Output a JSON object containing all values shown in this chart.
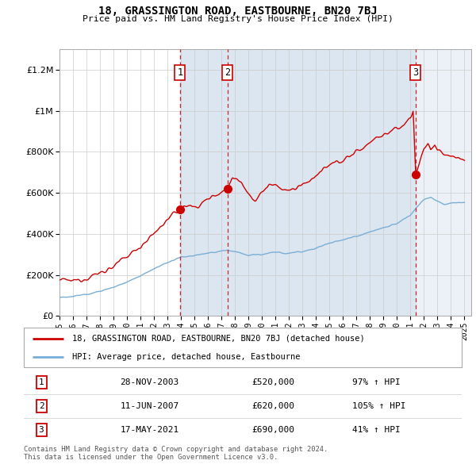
{
  "title": "18, GRASSINGTON ROAD, EASTBOURNE, BN20 7BJ",
  "subtitle": "Price paid vs. HM Land Registry's House Price Index (HPI)",
  "legend_label_red": "18, GRASSINGTON ROAD, EASTBOURNE, BN20 7BJ (detached house)",
  "legend_label_blue": "HPI: Average price, detached house, Eastbourne",
  "footer1": "Contains HM Land Registry data © Crown copyright and database right 2024.",
  "footer2": "This data is licensed under the Open Government Licence v3.0.",
  "sales": [
    {
      "num": 1,
      "date": "28-NOV-2003",
      "price": "£520,000",
      "pct": "97% ↑ HPI",
      "year": 2003.92
    },
    {
      "num": 2,
      "date": "11-JUN-2007",
      "price": "£620,000",
      "pct": "105% ↑ HPI",
      "year": 2007.45
    },
    {
      "num": 3,
      "date": "17-MAY-2021",
      "price": "£690,000",
      "pct": "41% ↑ HPI",
      "year": 2021.38
    }
  ],
  "sale_prices": [
    520000,
    620000,
    690000
  ],
  "ylim": [
    0,
    1300000
  ],
  "xlim_start": 1995.0,
  "xlim_end": 2025.5,
  "red_color": "#cc0000",
  "blue_color": "#7aaed6",
  "shade_color": "#dce6f0",
  "background_color": "#ffffff",
  "grid_color": "#cccccc"
}
